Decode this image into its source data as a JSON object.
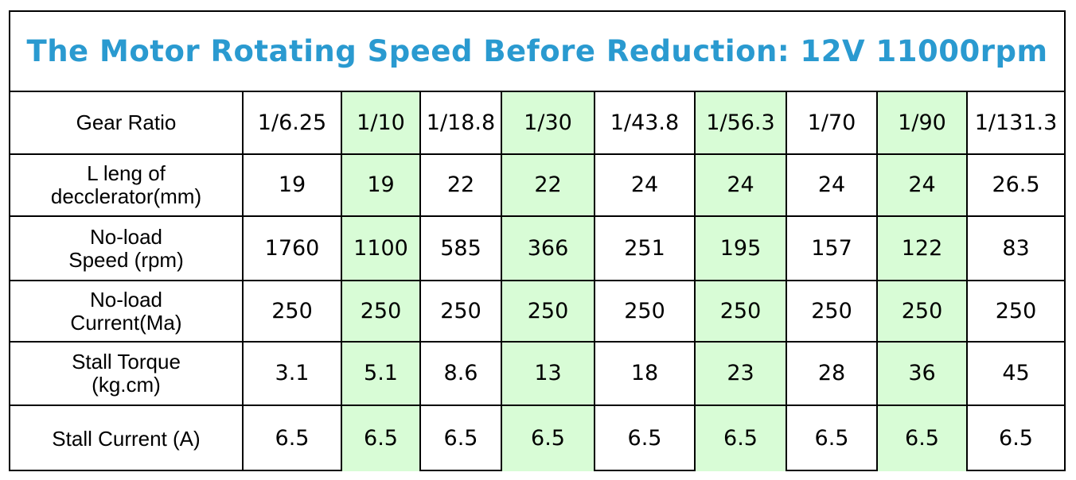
{
  "title": "The Motor Rotating Speed Before Reduction: 12V 11000rpm",
  "colors": {
    "title": "#2a9ad0",
    "highlight": "#d8fcd6",
    "border": "#000000"
  },
  "highlight_columns": [
    1,
    3,
    5,
    7
  ],
  "table": {
    "rows": [
      {
        "label": "Gear Ratio",
        "values": [
          "1/6.25",
          "1/10",
          "1/18.8",
          "1/30",
          "1/43.8",
          "1/56.3",
          "1/70",
          "1/90",
          "1/131.3"
        ]
      },
      {
        "label": "L leng of\ndecclerator(mm)",
        "values": [
          "19",
          "19",
          "22",
          "22",
          "24",
          "24",
          "24",
          "24",
          "26.5"
        ]
      },
      {
        "label": "No-load\nSpeed (rpm)",
        "values": [
          "1760",
          "1100",
          "585",
          "366",
          "251",
          "195",
          "157",
          "122",
          "83"
        ]
      },
      {
        "label": "No-load\nCurrent(Ma)",
        "values": [
          "250",
          "250",
          "250",
          "250",
          "250",
          "250",
          "250",
          "250",
          "250"
        ]
      },
      {
        "label": "Stall Torque\n(kg.cm)",
        "values": [
          "3.1",
          "5.1",
          "8.6",
          "13",
          "18",
          "23",
          "28",
          "36",
          "45"
        ]
      },
      {
        "label": "Stall Current (A)",
        "values": [
          "6.5",
          "6.5",
          "6.5",
          "6.5",
          "6.5",
          "6.5",
          "6.5",
          "6.5",
          "6.5"
        ]
      }
    ]
  }
}
